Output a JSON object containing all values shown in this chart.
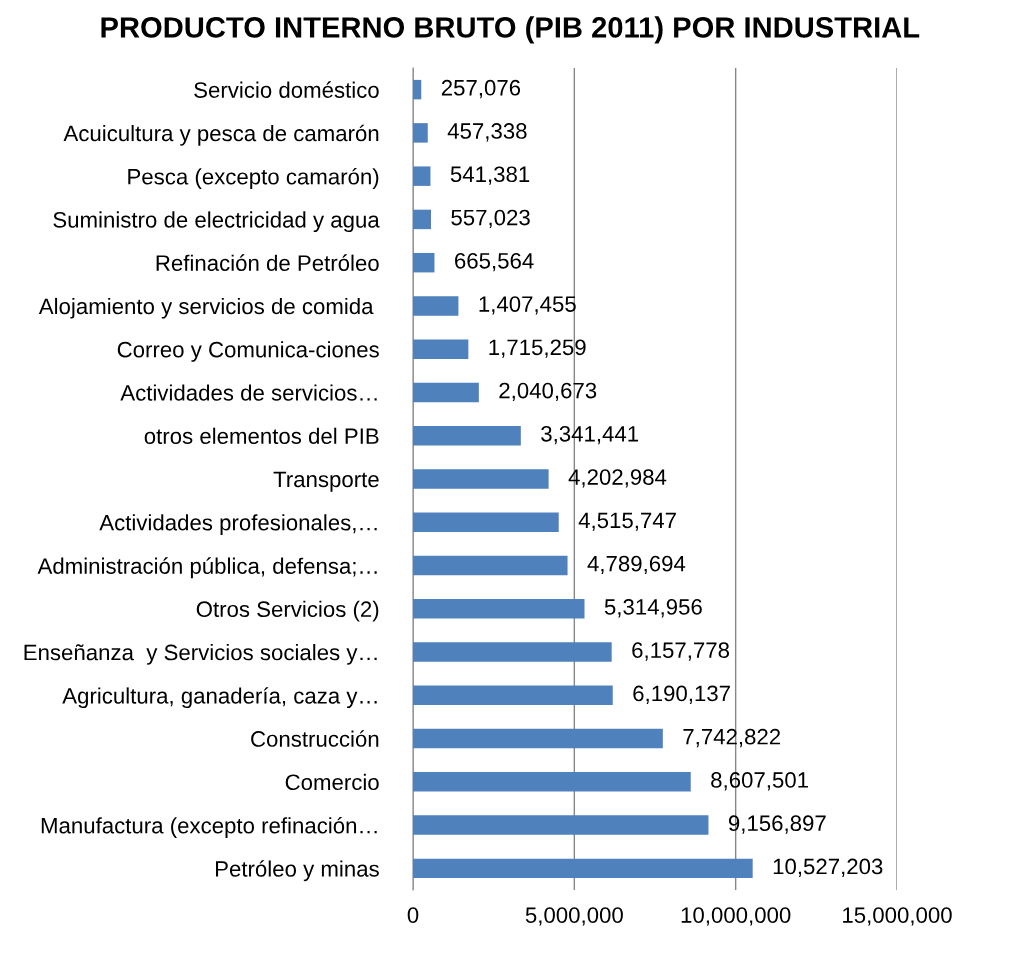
{
  "chart_data": {
    "type": "bar",
    "orientation": "horizontal",
    "title": "PRODUCTO INTERNO BRUTO (PIB 2011) POR INDUSTRIAL",
    "categories": [
      "Servicio doméstico",
      "Acuicultura y pesca de camarón",
      "Pesca (excepto camarón)",
      "Suministro de electricidad y agua",
      "Refinación de Petróleo",
      "Alojamiento y servicios de comida ",
      "Correo y Comunica-ciones",
      "Actividades de servicios…",
      "otros elementos del PIB",
      "Transporte",
      "Actividades profesionales,…",
      "Administración pública, defensa;…",
      "Otros Servicios (2)",
      "Enseñanza  y Servicios sociales y…",
      "Agricultura, ganadería, caza y…",
      "Construcción",
      "Comercio",
      "Manufactura (excepto refinación…",
      "Petróleo y minas"
    ],
    "values": [
      257076,
      457338,
      541381,
      557023,
      665564,
      1407455,
      1715259,
      2040673,
      3341441,
      4202984,
      4515747,
      4789694,
      5314956,
      6157778,
      6190137,
      7742822,
      8607501,
      9156897,
      10527203
    ],
    "value_labels": [
      "257,076",
      "457,338",
      "541,381",
      "557,023",
      "665,564",
      "1,407,455",
      "1,715,259",
      "2,040,673",
      "3,341,441",
      "4,202,984",
      "4,515,747",
      "4,789,694",
      "5,314,956",
      "6,157,778",
      "6,190,137",
      "7,742,822",
      "8,607,501",
      "9,156,897",
      "10,527,203"
    ],
    "color": "#4f81bd",
    "xlim": [
      0,
      15000000
    ],
    "xticks": [
      0,
      {
        "value": 5000000,
        "label": "5,000,000"
      },
      {
        "value": 10000000,
        "label": "10,000,000"
      },
      {
        "value": 15000000,
        "label": "15,000,000"
      }
    ],
    "grid": "x"
  }
}
